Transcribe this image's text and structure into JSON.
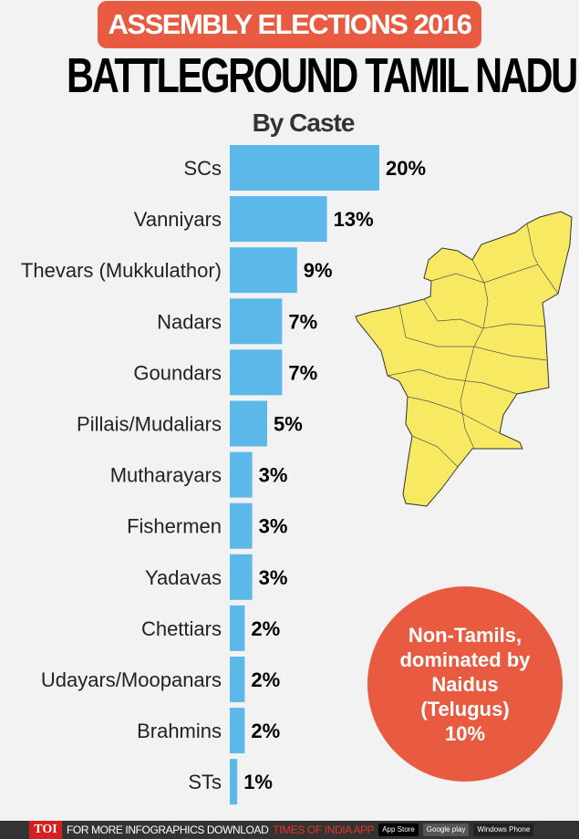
{
  "header": {
    "badge": "ASSEMBLY ELECTIONS 2016",
    "title": "BATTLEGROUND TAMIL NADU",
    "subtitle": "By Caste"
  },
  "chart_data": {
    "type": "bar",
    "orientation": "horizontal",
    "title": "By Caste",
    "categories": [
      "SCs",
      "Vanniyars",
      "Thevars (Mukkulathor)",
      "Nadars",
      "Goundars",
      "Pillais/Mudaliars",
      "Mutharayars",
      "Fishermen",
      "Yadavas",
      "Chettiars",
      "Udayars/Moopanars",
      "Brahmins",
      "STs"
    ],
    "values": [
      20,
      13,
      9,
      7,
      7,
      5,
      3,
      3,
      3,
      2,
      2,
      2,
      1
    ],
    "data_labels": [
      "20%",
      "13%",
      "9%",
      "7%",
      "7%",
      "5%",
      "3%",
      "3%",
      "3%",
      "2%",
      "2%",
      "2%",
      "1%"
    ],
    "unit": "%",
    "bar_color": "#5bb8e8",
    "grid": false
  },
  "callout": {
    "line1": "Non-Tamils,",
    "line2": "dominated by",
    "line3": "Naidus",
    "line4": "(Telugus)",
    "value": "10%",
    "color": "#e85b40"
  },
  "map": {
    "fill": "#f7ea62"
  },
  "footer": {
    "logo": "TOI",
    "text": "FOR MORE  INFOGRAPHICS DOWNLOAD",
    "app": "TIMES OF INDIA  APP",
    "app_store": "App Store",
    "google_play": "Google play",
    "windows": "Windows Phone"
  }
}
